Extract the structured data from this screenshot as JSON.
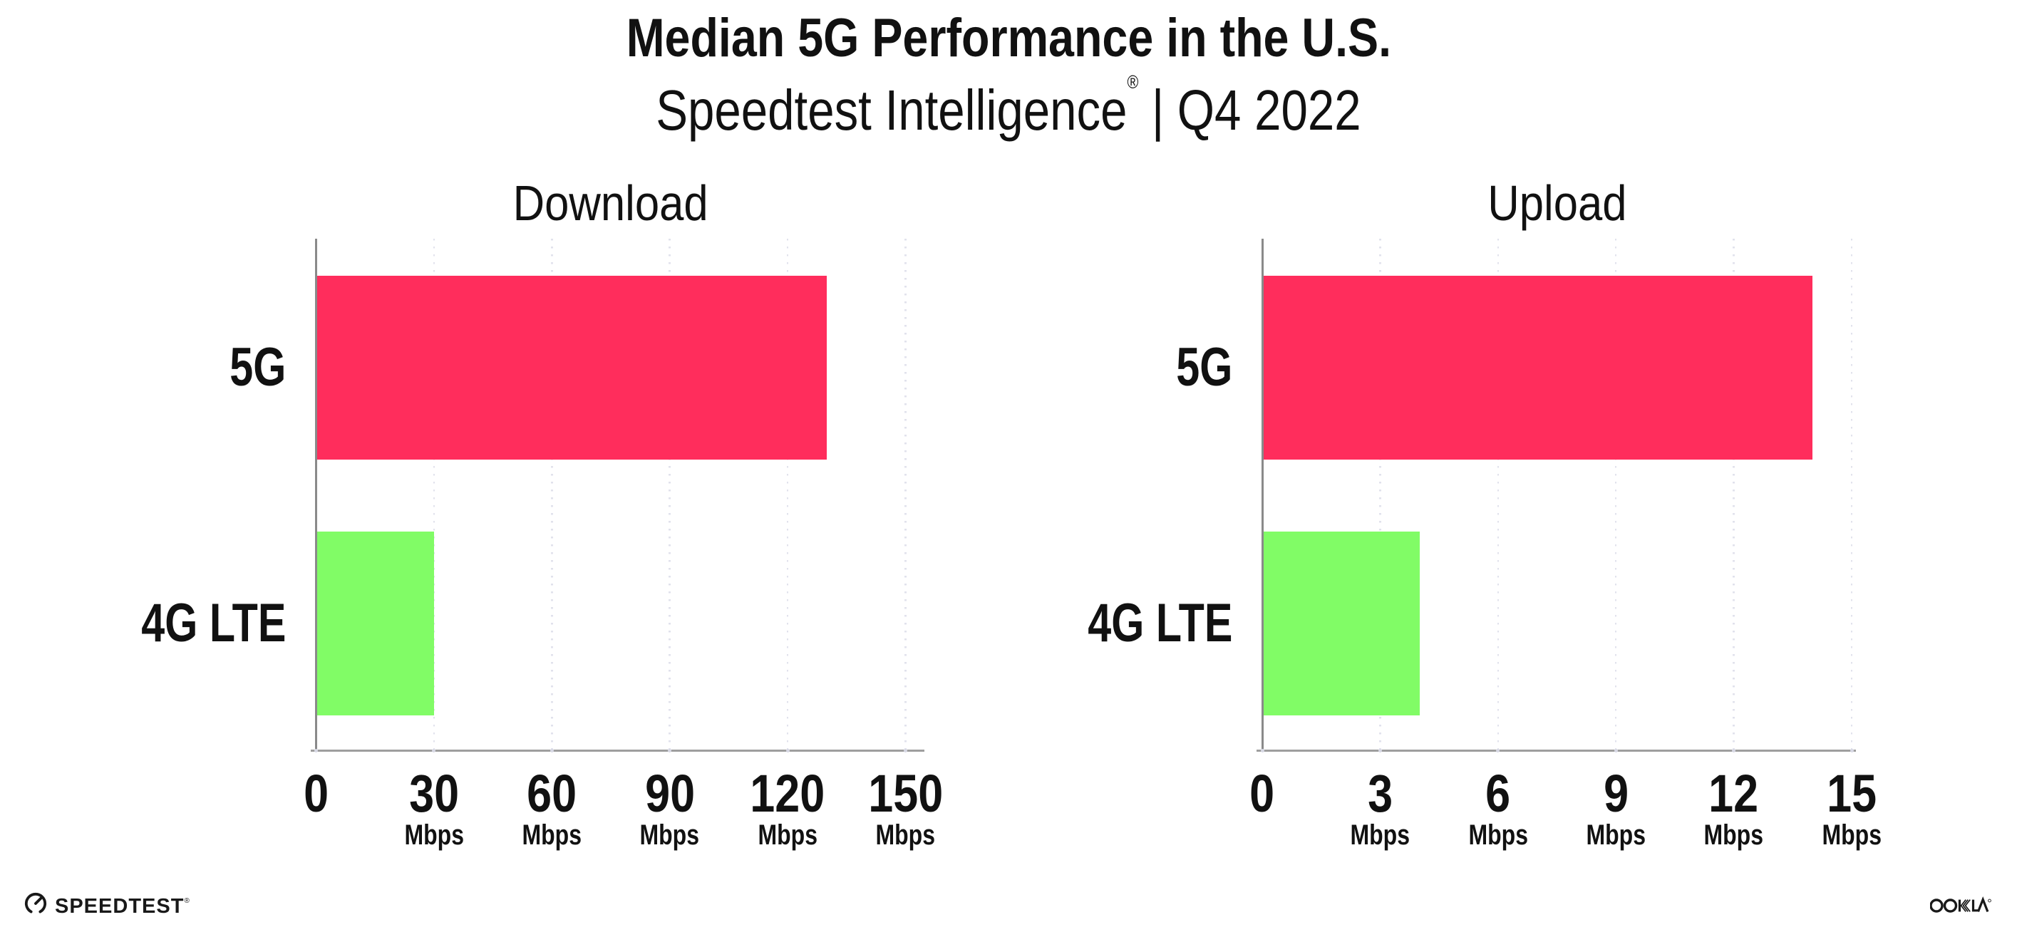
{
  "header": {
    "title": "Median 5G Performance in the U.S.",
    "subtitle_brand": "Speedtest Intelligence",
    "subtitle_reg": "®",
    "subtitle_separator": "|",
    "subtitle_period": "Q4 2022"
  },
  "chart_data": [
    {
      "type": "bar",
      "orientation": "horizontal",
      "title": "Download",
      "categories": [
        "5G",
        "4G LTE"
      ],
      "values": [
        130,
        30
      ],
      "unit": "Mbps",
      "tick_unit_label": "Mbps",
      "ticks": [
        0,
        30,
        60,
        90,
        120,
        150
      ],
      "xlim": [
        0,
        150
      ],
      "bar_colors": [
        "#FF2D5C",
        "#81FC66"
      ],
      "grid": "dotted-vertical",
      "legend": "none"
    },
    {
      "type": "bar",
      "orientation": "horizontal",
      "title": "Upload",
      "categories": [
        "5G",
        "4G LTE"
      ],
      "values": [
        14,
        4
      ],
      "unit": "Mbps",
      "tick_unit_label": "Mbps",
      "ticks": [
        0,
        3,
        6,
        9,
        12,
        15
      ],
      "xlim": [
        0,
        15
      ],
      "bar_colors": [
        "#FF2D5C",
        "#81FC66"
      ],
      "grid": "dotted-vertical",
      "legend": "none"
    }
  ],
  "footer": {
    "speedtest_wordmark": "SPEEDTEST",
    "speedtest_reg": "®",
    "ookla_wordmark": "OOKLA",
    "ookla_reg": "®"
  },
  "colors": {
    "bar_5g": "#FF2D5C",
    "bar_4g_lte": "#81FC66",
    "axis": "#8A8A8A",
    "baseline": "#9E9E9E",
    "gridline": "#E1E2EC",
    "tick_dot": "#D7D8E4",
    "text": "#111111",
    "logo_ink": "#191919",
    "background": "#FFFFFF"
  }
}
